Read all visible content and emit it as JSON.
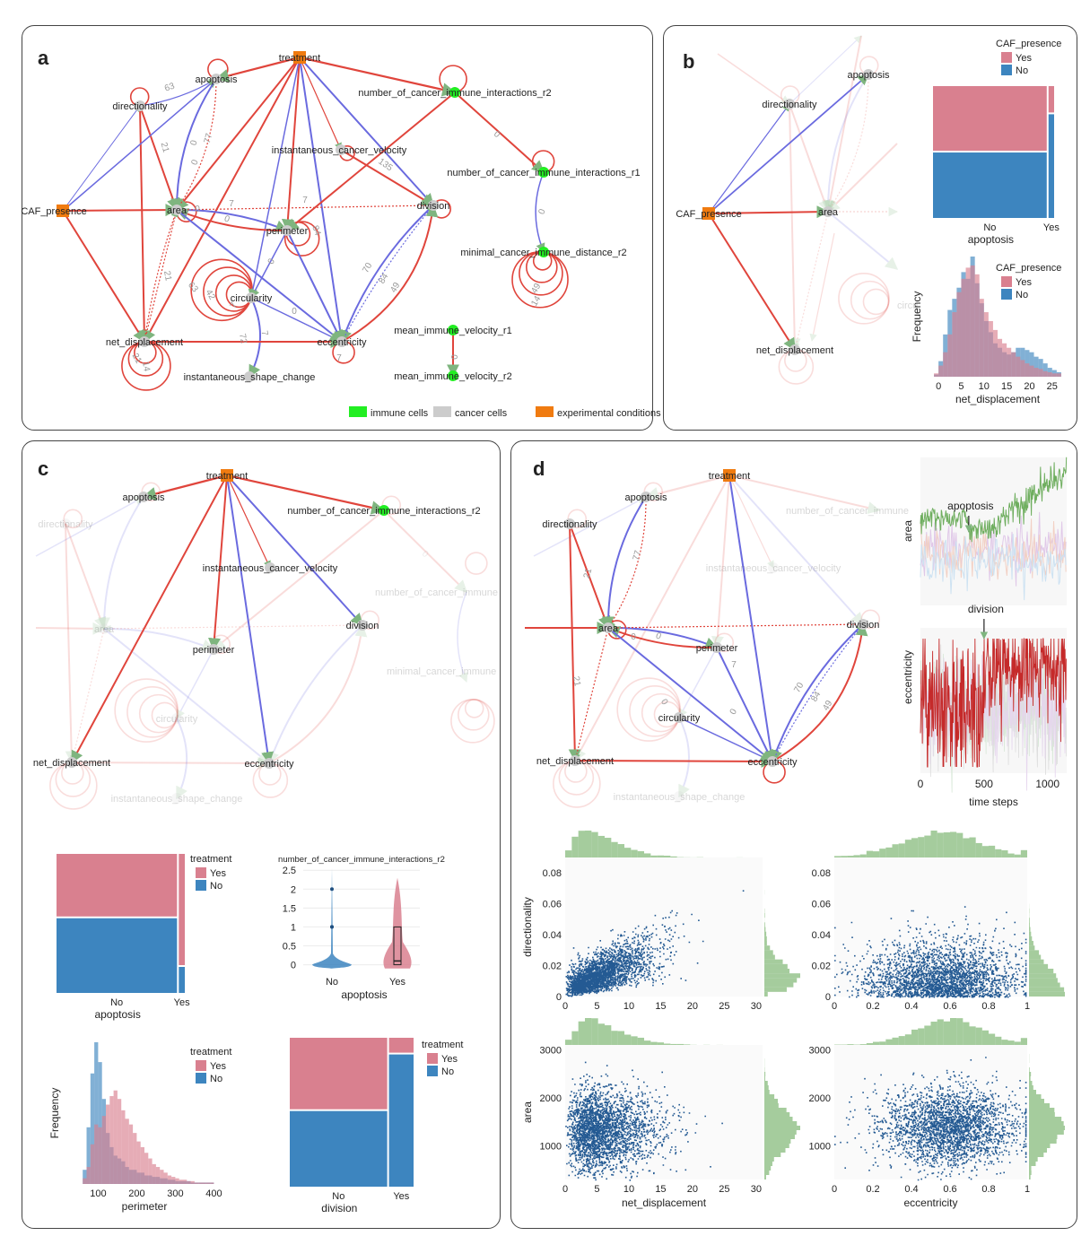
{
  "panels": {
    "a": "a",
    "b": "b",
    "c": "c",
    "d": "d"
  },
  "legend_a": [
    {
      "label": "immune cells",
      "color": "#22ee22"
    },
    {
      "label": "cancer cells",
      "color": "#cccccc"
    },
    {
      "label": "experimental conditions",
      "color": "#f07b10"
    }
  ],
  "colors": {
    "red": "#e0453c",
    "blue": "#6a6adf",
    "arrowhead": "#7fb57f",
    "yes": "#d9808f",
    "no": "#3d85bf",
    "hist_green": "#8fbf84",
    "scatter": "#245a93",
    "condition": "#f07b10",
    "immune": "#22ee22",
    "cancer": "#cccccc"
  },
  "nodes": {
    "treatment": "treatment",
    "apoptosis": "apoptosis",
    "directionality": "directionality",
    "n_r2": "number_of_cancer_immune_interactions_r2",
    "n_r1": "number_of_cancer_immune_interactions_r1",
    "icv": "instantaneous_cancer_velocity",
    "caf": "CAF_presence",
    "area": "area",
    "division": "division",
    "perimeter": "perimeter",
    "mincd": "minimal_cancer_immune_distance_r2",
    "circularity": "circularity",
    "net_disp": "net_displacement",
    "eccentricity": "eccentricity",
    "miv1": "mean_immune_velocity_r1",
    "miv2": "mean_immune_velocity_r2",
    "isc": "instantaneous_shape_change",
    "n_r2_trunc": "number_of_cancer_immune_interactions_r2",
    "n_r2_trunc_c": "number_of_cancer_immune",
    "mincd_trunc": "minimal_cancer_immune",
    "circ_trunc": "circu"
  },
  "edge_labels_a": [
    "63",
    "0",
    "21",
    "0",
    "77",
    "7",
    "0",
    "135",
    "7",
    "0",
    "0",
    "21",
    "84",
    "42",
    "63",
    "0",
    "7",
    "72",
    "7",
    "70",
    "84",
    "49",
    "0",
    "0",
    "14",
    "21",
    "49",
    "14",
    "7",
    "0",
    "0"
  ],
  "edge_labels_d": [
    "21",
    "77",
    "0",
    "0",
    "7",
    "21",
    "0",
    "0",
    "70",
    "84",
    "49"
  ],
  "chart_data": [
    {
      "type": "mosaic",
      "id": "b-mosaic",
      "x_label": "apoptosis",
      "categories": [
        "No",
        "Yes"
      ],
      "legend_title": "CAF_presence",
      "series": [
        {
          "name": "Yes"
        },
        {
          "name": "No"
        }
      ],
      "column_widths": [
        0.94,
        0.06
      ],
      "yes_fraction": [
        0.49,
        0.2
      ]
    },
    {
      "type": "histogram",
      "id": "b-hist",
      "x_label": "net_displacement",
      "y_label": "Frequency",
      "x_ticks": [
        "0",
        "5",
        "10",
        "15",
        "20",
        "25"
      ],
      "xlim": [
        -2,
        28
      ],
      "legend_title": "CAF_presence",
      "series": [
        {
          "name": "Yes",
          "bin_start": -1,
          "bin_width": 1,
          "counts": [
            3,
            10,
            22,
            38,
            58,
            76,
            88,
            98,
            100,
            92,
            70,
            58,
            50,
            42,
            34,
            30,
            26,
            22,
            18,
            15,
            12,
            10,
            8,
            7,
            5,
            4,
            3,
            3
          ]
        },
        {
          "name": "No",
          "bin_start": -1,
          "bin_width": 1,
          "counts": [
            2,
            14,
            38,
            60,
            70,
            80,
            94,
            88,
            108,
            84,
            66,
            50,
            40,
            30,
            26,
            22,
            20,
            22,
            26,
            26,
            24,
            22,
            18,
            16,
            12,
            8,
            6,
            4
          ]
        }
      ]
    },
    {
      "type": "mosaic",
      "id": "c-mosaic-apoptosis",
      "x_label": "apoptosis",
      "categories": [
        "No",
        "Yes"
      ],
      "legend_title": "treatment",
      "series": [
        {
          "name": "Yes"
        },
        {
          "name": "No"
        }
      ],
      "column_widths": [
        0.94,
        0.06
      ],
      "yes_fraction": [
        0.45,
        0.8
      ]
    },
    {
      "type": "violin",
      "id": "c-violin",
      "title": "number_of_cancer_immune_interactions_r2",
      "x_label": "apoptosis",
      "categories": [
        "No",
        "Yes"
      ],
      "y_ticks": [
        "0",
        "0.5",
        "1",
        "1.5",
        "2",
        "2.5"
      ],
      "ylim": [
        -0.2,
        2.6
      ],
      "outliers_no": [
        1,
        1,
        2
      ],
      "box_yes": {
        "q1": 0,
        "median": 0.1,
        "q3": 1.0
      }
    },
    {
      "type": "histogram",
      "id": "c-hist",
      "x_label": "perimeter",
      "y_label": "Frequency",
      "x_ticks": [
        "100",
        "200",
        "300",
        "400"
      ],
      "xlim": [
        20,
        420
      ],
      "legend_title": "treatment",
      "series": [
        {
          "name": "Yes",
          "bin_start": 60,
          "bin_width": 10,
          "counts": [
            4,
            12,
            28,
            42,
            40,
            48,
            56,
            62,
            66,
            60,
            52,
            46,
            42,
            36,
            30,
            26,
            22,
            18,
            14,
            12,
            10,
            8,
            6,
            5,
            4,
            3,
            3,
            2,
            2,
            1,
            1,
            1,
            1,
            1,
            0
          ]
        },
        {
          "name": "No",
          "bin_start": 60,
          "bin_width": 10,
          "counts": [
            10,
            40,
            78,
            100,
            86,
            60,
            36,
            26,
            20,
            18,
            16,
            12,
            10,
            10,
            8,
            8,
            6,
            6,
            5,
            5,
            4,
            4,
            3,
            3,
            2,
            2,
            2,
            2,
            1,
            1,
            1,
            1,
            1,
            1,
            0
          ]
        }
      ]
    },
    {
      "type": "mosaic",
      "id": "c-mosaic-division",
      "x_label": "division",
      "categories": [
        "No",
        "Yes"
      ],
      "legend_title": "treatment",
      "series": [
        {
          "name": "Yes"
        },
        {
          "name": "No"
        }
      ],
      "column_widths": [
        0.79,
        0.21
      ],
      "yes_fraction": [
        0.48,
        0.1
      ]
    },
    {
      "type": "line",
      "id": "d-area-line",
      "y_label": "area",
      "annotation": "apoptosis",
      "event_time": 380
    },
    {
      "type": "line",
      "id": "d-ecc-line",
      "y_label": "eccentricity",
      "x_label": "time  steps",
      "annotation": "division",
      "event_time": 500,
      "x_ticks": [
        "0",
        "500",
        "1000"
      ],
      "xlim": [
        0,
        1150
      ]
    },
    {
      "type": "scatter",
      "id": "d-scatter-1",
      "x_label": "",
      "y_label": "directionality",
      "x_ticks": [
        "0",
        "5",
        "10",
        "15",
        "20",
        "25",
        "30"
      ],
      "y_ticks": [
        "0",
        "0.02",
        "0.04",
        "0.06",
        "0.08"
      ],
      "xlim": [
        0,
        31
      ],
      "ylim": [
        0,
        0.09
      ]
    },
    {
      "type": "scatter",
      "id": "d-scatter-2",
      "x_label": "",
      "y_label": "",
      "x_ticks": [
        "0",
        "0.2",
        "0.4",
        "0.6",
        "0.8",
        "1"
      ],
      "y_ticks": [
        "0",
        "0.02",
        "0.04",
        "0.06",
        "0.08"
      ],
      "xlim": [
        0,
        1
      ],
      "ylim": [
        0,
        0.09
      ]
    },
    {
      "type": "scatter",
      "id": "d-scatter-3",
      "x_label": "net_displacement",
      "y_label": "area",
      "x_ticks": [
        "0",
        "5",
        "10",
        "15",
        "20",
        "25",
        "30"
      ],
      "y_ticks": [
        "1000",
        "2000",
        "3000"
      ],
      "xlim": [
        0,
        31
      ],
      "ylim": [
        300,
        3100
      ]
    },
    {
      "type": "scatter",
      "id": "d-scatter-4",
      "x_label": "eccentricity",
      "y_label": "",
      "x_ticks": [
        "0",
        "0.2",
        "0.4",
        "0.6",
        "0.8",
        "1"
      ],
      "y_ticks": [
        "1000",
        "2000",
        "3000"
      ],
      "xlim": [
        0,
        1
      ],
      "ylim": [
        300,
        3100
      ]
    }
  ]
}
